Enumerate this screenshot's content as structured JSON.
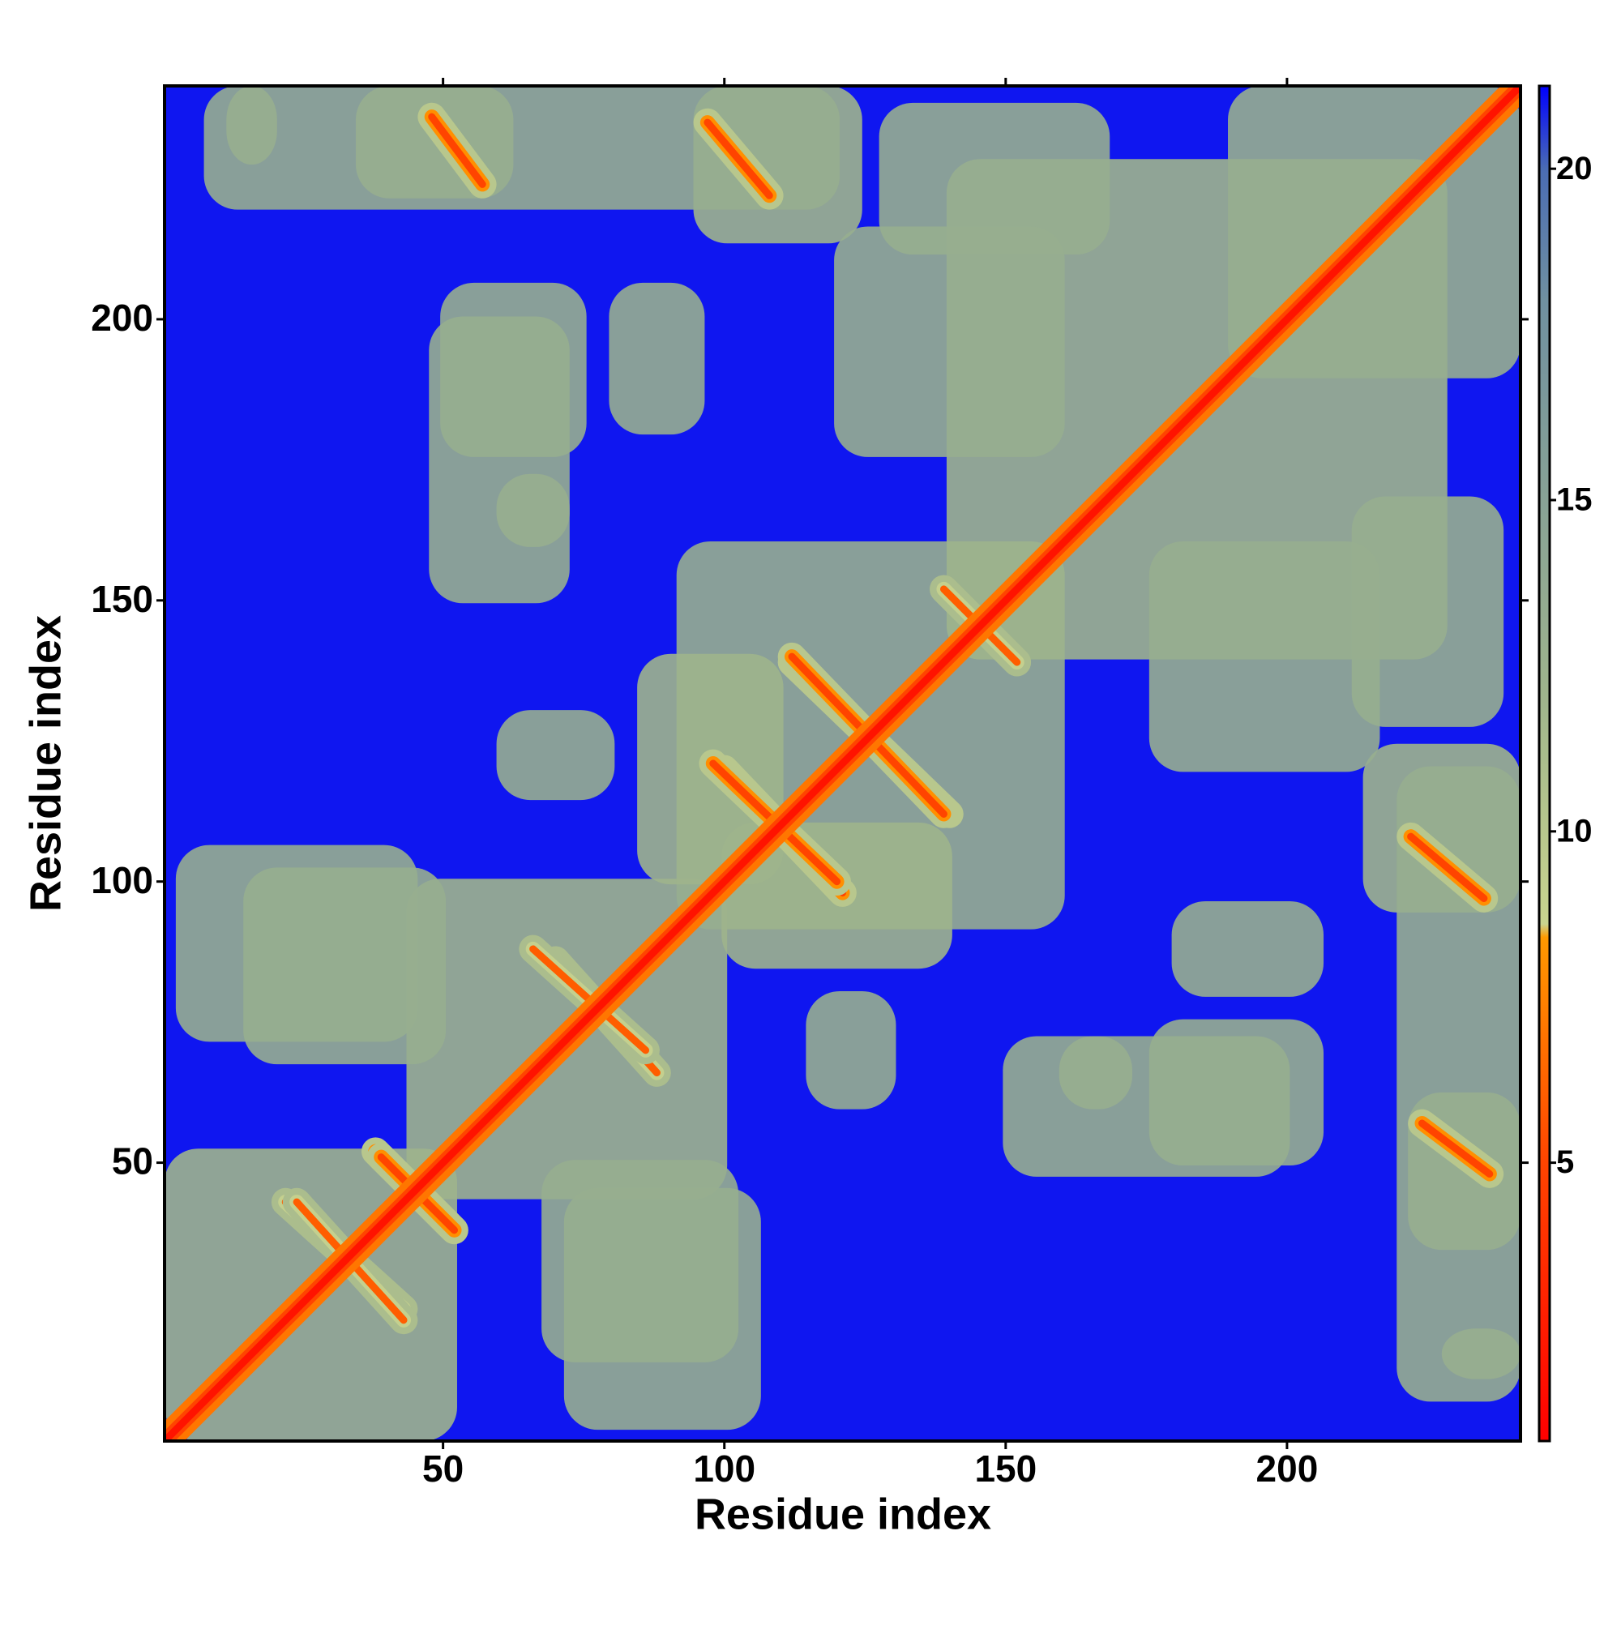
{
  "chart_data": {
    "type": "heatmap",
    "xlabel": "Residue index",
    "ylabel": "Residue index",
    "xlim": [
      0.5,
      241.5
    ],
    "ylim": [
      0.5,
      241.5
    ],
    "xticks": [
      50,
      100,
      150,
      200
    ],
    "yticks": [
      50,
      100,
      150,
      200
    ],
    "symmetric": true,
    "background": 21,
    "blocks": [
      {
        "x": [
          1,
          52
        ],
        "y": [
          1,
          52
        ],
        "value": 12
      },
      {
        "x": [
          44,
          100
        ],
        "y": [
          44,
          100
        ],
        "value": 12
      },
      {
        "x": [
          92,
          160
        ],
        "y": [
          92,
          160
        ],
        "value": 13
      },
      {
        "x": [
          140,
          228
        ],
        "y": [
          140,
          228
        ],
        "value": 12
      },
      {
        "x": [
          190,
          241
        ],
        "y": [
          190,
          241
        ],
        "value": 13
      },
      {
        "x": [
          3,
          45
        ],
        "y": [
          72,
          106
        ],
        "value": 13
      },
      {
        "x": [
          12,
          20
        ],
        "y": [
          228,
          241
        ],
        "value": 12
      },
      {
        "x": [
          35,
          62
        ],
        "y": [
          222,
          241
        ],
        "value": 12
      },
      {
        "x": [
          95,
          124
        ],
        "y": [
          214,
          241
        ],
        "value": 12
      },
      {
        "x": [
          128,
          168
        ],
        "y": [
          212,
          238
        ],
        "value": 13
      },
      {
        "x": [
          50,
          75
        ],
        "y": [
          176,
          206
        ],
        "value": 13
      },
      {
        "x": [
          80,
          96
        ],
        "y": [
          180,
          206
        ],
        "value": 13
      },
      {
        "x": [
          60,
          72
        ],
        "y": [
          160,
          172
        ],
        "value": 12
      },
      {
        "x": [
          68,
          102
        ],
        "y": [
          15,
          50
        ],
        "value": 13
      },
      {
        "x": [
          150,
          200
        ],
        "y": [
          48,
          72
        ],
        "value": 13
      },
      {
        "x": [
          220,
          241
        ],
        "y": [
          8,
          120
        ],
        "value": 13
      },
      {
        "x": [
          176,
          216
        ],
        "y": [
          120,
          160
        ],
        "value": 13
      },
      {
        "x": [
          100,
          140
        ],
        "y": [
          85,
          110
        ],
        "value": 12
      },
      {
        "x": [
          60,
          80
        ],
        "y": [
          115,
          130
        ],
        "value": 13
      }
    ],
    "lines": [
      {
        "x": [
          22,
          43
        ],
        "y": [
          43,
          24
        ],
        "value": 6
      },
      {
        "x": [
          38,
          51
        ],
        "y": [
          52,
          39
        ],
        "value": 5
      },
      {
        "x": [
          70,
          88
        ],
        "y": [
          86,
          66
        ],
        "value": 6
      },
      {
        "x": [
          100,
          121
        ],
        "y": [
          120,
          98
        ],
        "value": 5
      },
      {
        "x": [
          112,
          140
        ],
        "y": [
          139,
          112
        ],
        "value": 5
      },
      {
        "x": [
          139,
          152
        ],
        "y": [
          152,
          139
        ],
        "value": 6
      },
      {
        "x": [
          48,
          57
        ],
        "y": [
          236,
          224
        ],
        "value": 5
      },
      {
        "x": [
          97,
          108
        ],
        "y": [
          235,
          222
        ],
        "value": 5
      },
      {
        "x": [
          1,
          241
        ],
        "y": [
          1,
          241
        ],
        "value": 2
      }
    ],
    "colorbar": {
      "lim": [
        0.8,
        21.25
      ],
      "ticks": [
        5,
        10,
        15,
        20
      ],
      "stops": [
        {
          "value": 0.8,
          "color": "#ff0000"
        },
        {
          "value": 5,
          "color": "#ff4400"
        },
        {
          "value": 8.4,
          "color": "#ff9900"
        },
        {
          "value": 8.6,
          "color": "#c9d48e"
        },
        {
          "value": 12,
          "color": "#9fb48c"
        },
        {
          "value": 18,
          "color": "#7090a0"
        },
        {
          "value": 20,
          "color": "#4a6cb4"
        },
        {
          "value": 21.25,
          "color": "#0000ff"
        }
      ]
    }
  }
}
